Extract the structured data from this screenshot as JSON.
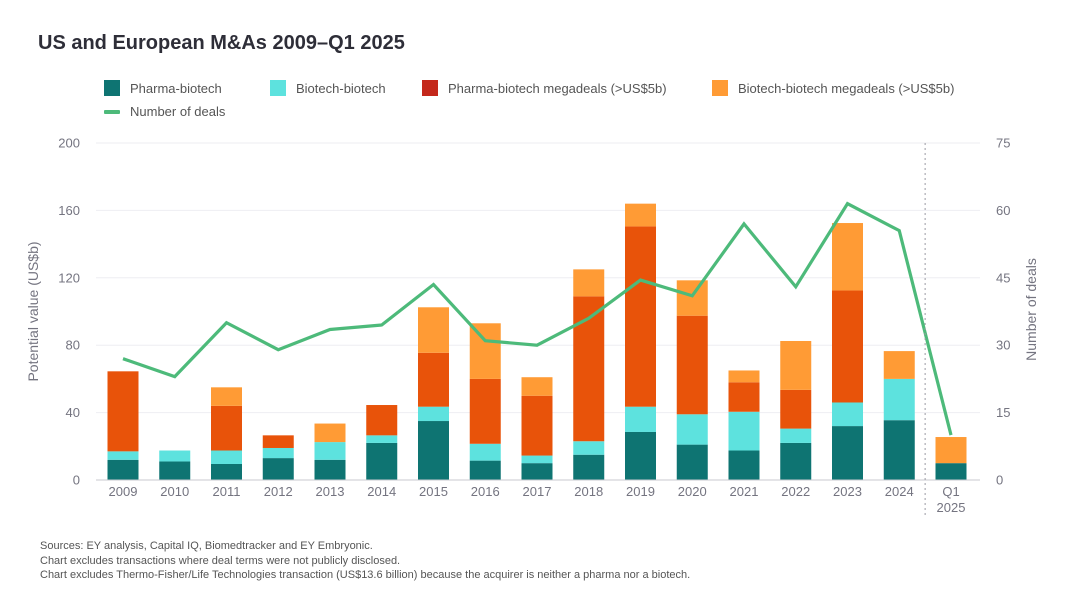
{
  "title": "US and European M&As 2009–Q1 2025",
  "colors": {
    "pharma_biotech": "#0e7472",
    "biotech_biotech": "#5de2de",
    "pharma_megadeals": "#e8530a",
    "pharma_megadeals_legend": "#c4281b",
    "biotech_megadeals": "#ff9b35",
    "deals_line": "#4dba7a",
    "grid": "#eeeef2",
    "axis_text": "#747480"
  },
  "legend": [
    {
      "key": "pharma_biotech",
      "label": "Pharma-biotech",
      "swatch": "#0e7472",
      "kind": "box"
    },
    {
      "key": "biotech_biotech",
      "label": "Biotech-biotech",
      "swatch": "#5de2de",
      "kind": "box"
    },
    {
      "key": "pharma_megadeals",
      "label": "Pharma-biotech megadeals (>US$5b)",
      "swatch": "#c4281b",
      "kind": "box"
    },
    {
      "key": "biotech_megadeals",
      "label": "Biotech-biotech megadeals (>US$5b)",
      "swatch": "#ff9b35",
      "kind": "box"
    },
    {
      "key": "deals_line",
      "label": "Number of deals",
      "swatch": "#4dba7a",
      "kind": "line"
    }
  ],
  "chart_data": {
    "type": "bar",
    "stacked": true,
    "categories": [
      "2009",
      "2010",
      "2011",
      "2012",
      "2013",
      "2014",
      "2015",
      "2016",
      "2017",
      "2018",
      "2019",
      "2020",
      "2021",
      "2022",
      "2023",
      "2024",
      "Q1 2025"
    ],
    "category_lines": [
      [
        "2009"
      ],
      [
        "2010"
      ],
      [
        "2011"
      ],
      [
        "2012"
      ],
      [
        "2013"
      ],
      [
        "2014"
      ],
      [
        "2015"
      ],
      [
        "2016"
      ],
      [
        "2017"
      ],
      [
        "2018"
      ],
      [
        "2019"
      ],
      [
        "2020"
      ],
      [
        "2021"
      ],
      [
        "2022"
      ],
      [
        "2023"
      ],
      [
        "2024"
      ],
      [
        "Q1",
        "2025"
      ]
    ],
    "series": [
      {
        "name": "Pharma-biotech",
        "color": "#0e7472",
        "axis": "left",
        "values": [
          12,
          11,
          9.5,
          13,
          12,
          22,
          35,
          11.5,
          10,
          15,
          28.5,
          21,
          17.5,
          22,
          32,
          35.5,
          10
        ]
      },
      {
        "name": "Biotech-biotech",
        "color": "#5de2de",
        "axis": "left",
        "values": [
          5,
          6.5,
          8,
          6,
          10.5,
          4.5,
          8.5,
          10,
          4.5,
          8,
          15,
          18,
          23,
          8.5,
          14,
          24.5,
          0
        ]
      },
      {
        "name": "Pharma-biotech megadeals (>US$5b)",
        "color": "#e8530a",
        "axis": "left",
        "values": [
          47.5,
          0,
          26.5,
          7.5,
          0,
          18,
          32,
          38.5,
          35.5,
          86,
          107,
          58.5,
          17.5,
          23,
          66.5,
          0,
          0
        ]
      },
      {
        "name": "Biotech-biotech megadeals (>US$5b)",
        "color": "#ff9b35",
        "axis": "left",
        "values": [
          0,
          0,
          11,
          0,
          11,
          0,
          27,
          33,
          11,
          16,
          13.5,
          21,
          7,
          29,
          40,
          16.5,
          15.5
        ]
      },
      {
        "name": "Number of deals",
        "color": "#4dba7a",
        "axis": "right",
        "type": "line",
        "values": [
          27,
          23,
          35,
          29,
          33.5,
          34.5,
          43.5,
          31,
          30,
          36,
          44.5,
          41,
          57,
          43,
          61.5,
          55.5,
          10
        ]
      }
    ],
    "ylabel": "Potential value (US$b)",
    "ylim": [
      0,
      200
    ],
    "yticks": [
      0,
      40,
      80,
      120,
      160,
      200
    ],
    "y2label": "Number of deals",
    "y2lim": [
      0,
      75
    ],
    "y2ticks": [
      0,
      15,
      30,
      45,
      60,
      75
    ],
    "grid": true,
    "legend_position": "top-left",
    "separator_before": "Q1 2025"
  },
  "footnotes": [
    "Sources: EY analysis, Capital IQ, Biomedtracker and EY Embryonic.",
    "Chart excludes transactions where deal terms were not publicly disclosed.",
    "Chart excludes Thermo-Fisher/Life Technologies transaction (US$13.6 billion) because the acquirer is neither a pharma nor a biotech."
  ]
}
